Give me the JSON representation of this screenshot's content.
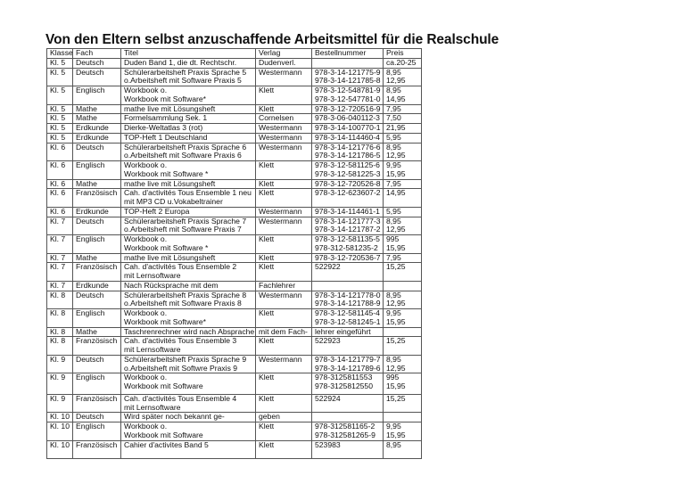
{
  "title": "Von den Eltern selbst anzuschaffende Arbeitsmittel für die Realschule",
  "headers": [
    "Klasse",
    "Fach",
    "Titel",
    "Verlag",
    "Bestellnummer",
    "Preis"
  ],
  "rows": [
    [
      [
        "Kl. 5"
      ],
      [
        "Deutsch"
      ],
      [
        "Duden Band 1, die dt. Rechtschr."
      ],
      [
        "Dudenverl."
      ],
      [
        ""
      ],
      [
        "ca.20-25"
      ]
    ],
    [
      [
        "Kl. 5"
      ],
      [
        "Deutsch"
      ],
      [
        "Schülerarbeitsheft Praxis Sprache 5",
        "o.Arbeitsheft mit Software Praxis 5"
      ],
      [
        "Westermann"
      ],
      [
        "978-3-14-121775-9",
        "978-3-14-121785-8"
      ],
      [
        "8,95",
        "12,95"
      ]
    ],
    [
      [
        "Kl. 5"
      ],
      [
        "Englisch"
      ],
      [
        "Workbook o.",
        "Workbook mit Software*"
      ],
      [
        "Klett"
      ],
      [
        "978-3-12-548781-9",
        "978-3-12-547781-0"
      ],
      [
        "8,95",
        "14,95"
      ]
    ],
    [
      [
        "Kl. 5"
      ],
      [
        "Mathe"
      ],
      [
        "mathe  live mit Lösungsheft"
      ],
      [
        "Klett"
      ],
      [
        "978-3-12-720516-9"
      ],
      [
        "7,95"
      ]
    ],
    [
      [
        "Kl. 5"
      ],
      [
        "Mathe"
      ],
      [
        "Formelsammlung Sek. 1"
      ],
      [
        "Cornelsen"
      ],
      [
        "978-3-06-040112-3"
      ],
      [
        "7,50"
      ]
    ],
    [
      [
        "Kl. 5"
      ],
      [
        "Erdkunde"
      ],
      [
        "Dierke-Weltatlas 3 (rot)"
      ],
      [
        "Westermann"
      ],
      [
        "978-3-14-100770-1"
      ],
      [
        "21,95"
      ]
    ],
    [
      [
        "Kl. 5"
      ],
      [
        "Erdkunde"
      ],
      [
        "TOP-Heft 1 Deutschland"
      ],
      [
        "Westermann"
      ],
      [
        "978-3-14-114460-4"
      ],
      [
        "5,95"
      ]
    ],
    [
      [
        "Kl. 6"
      ],
      [
        "Deutsch"
      ],
      [
        "Schülerarbeitsheft Praxis Sprache 6",
        "o.Arbeitsheft mit Software Praxis 6"
      ],
      [
        "Westermann"
      ],
      [
        "978-3-14-121776-6",
        "978-3-14-121786-5"
      ],
      [
        "8,95",
        "12,95"
      ]
    ],
    [
      [
        "Kl. 6"
      ],
      [
        "Englisch"
      ],
      [
        "Workbook o.",
        "Workbook mit Software *"
      ],
      [
        "Klett"
      ],
      [
        "978-3-12-581125-6",
        "978-3-12-581225-3"
      ],
      [
        "9,95",
        "15,95"
      ]
    ],
    [
      [
        "Kl. 6"
      ],
      [
        "Mathe"
      ],
      [
        "mathe live mit Lösungsheft"
      ],
      [
        "Klett"
      ],
      [
        "978-3-12-720526-8"
      ],
      [
        "7,95"
      ]
    ],
    [
      [
        "Kl. 6"
      ],
      [
        "Französisch"
      ],
      [
        "Cah. d'activités Tous Ensemble 1 neu",
        "mit MP3 CD u.Vokabeltrainer"
      ],
      [
        "Klett"
      ],
      [
        "978-3-12-623607-2"
      ],
      [
        "14,95"
      ]
    ],
    [
      [
        "Kl. 6"
      ],
      [
        "Erdkunde"
      ],
      [
        "TOP-Heft 2 Europa"
      ],
      [
        "Westermann"
      ],
      [
        "978-3-14-114461-1"
      ],
      [
        "5,95"
      ]
    ],
    [
      [
        "Kl. 7"
      ],
      [
        "Deutsch"
      ],
      [
        "Schülerarbeitsheft Praxis Sprache 7",
        "o.Arbeitsheft mit Software Praxis 7"
      ],
      [
        "Westermann"
      ],
      [
        "978-3-14-121777-3",
        "978-3-14-121787-2"
      ],
      [
        "8,95",
        "12,95"
      ]
    ],
    [
      [
        "Kl. 7"
      ],
      [
        "Englisch"
      ],
      [
        "Workbook o.",
        "Workbook mit Software *"
      ],
      [
        "Klett"
      ],
      [
        "978-3-12-581135-5",
        "978-312-581235-2"
      ],
      [
        "995",
        "15,95"
      ]
    ],
    [
      [
        "Kl. 7"
      ],
      [
        "Mathe"
      ],
      [
        "mathe live mit Lösungsheft"
      ],
      [
        "Klett"
      ],
      [
        "978-3-12-720536-7"
      ],
      [
        "7,95"
      ]
    ],
    [
      [
        "Kl. 7"
      ],
      [
        "Französisch"
      ],
      [
        "Cah. d'activités Tous Ensemble 2",
        "mit Lernsoftware"
      ],
      [
        "Klett"
      ],
      [
        "522922"
      ],
      [
        "15,25"
      ]
    ],
    [
      [
        "Kl. 7"
      ],
      [
        "Erdkunde"
      ],
      [
        "Nach Rücksprache mit dem"
      ],
      [
        "Fachlehrer"
      ],
      [
        ""
      ],
      [
        ""
      ]
    ],
    [
      [
        "Kl. 8"
      ],
      [
        "Deutsch"
      ],
      [
        "Schülerarbeitsheft Praxis Sprache 8",
        "o.Arbeitsheft mit Software Praxis 8"
      ],
      [
        "Westermann"
      ],
      [
        "978-3-14-121778-0",
        "978-3-14-121788-9"
      ],
      [
        "8,95",
        "12,95"
      ]
    ],
    [
      [
        "Kl. 8"
      ],
      [
        "Englisch"
      ],
      [
        "Workbook o.",
        "Workbook mit Software*"
      ],
      [
        "Klett"
      ],
      [
        "978-3-12-581145-4",
        "978-3-12-581245-1"
      ],
      [
        "9,95",
        "15,95"
      ]
    ],
    [
      [
        "Kl. 8"
      ],
      [
        "Mathe"
      ],
      [
        "Taschrenrechner wird nach Absprache"
      ],
      [
        "mit dem Fach-"
      ],
      [
        "lehrer eingeführt"
      ],
      [
        ""
      ]
    ],
    [
      [
        "Kl. 8"
      ],
      [
        "Französisch"
      ],
      [
        "Cah. d'activités Tous Ensemble 3",
        "mit Lernsoftware"
      ],
      [
        "Klett"
      ],
      [
        "522923"
      ],
      [
        "15,25"
      ]
    ],
    [
      [
        "Kl. 9"
      ],
      [
        "Deutsch"
      ],
      [
        "Schülerarbeitsheft Praxis Sprache 9",
        "o.Arbeitsheft mit Softwre Praxis 9"
      ],
      [
        "Westermann"
      ],
      [
        "978-3-14-121779-7",
        "978-3-14-121789-6"
      ],
      [
        "8,95",
        "12,95"
      ]
    ],
    [
      [
        "Kl. 9"
      ],
      [
        "Englisch"
      ],
      [
        "Workbook o.",
        "Workbook mit Software"
      ],
      [
        "Klett"
      ],
      [
        "978-3125811553",
        "978-3125812550"
      ],
      [
        "995",
        "15,95"
      ]
    ],
    [
      [
        "Kl. 9"
      ],
      [
        "Französisch"
      ],
      [
        "Cah. d'activités Tous  Ensemble 4",
        "mit Lernsoftware"
      ],
      [
        "Klett"
      ],
      [
        "522924"
      ],
      [
        "15,25"
      ]
    ],
    [
      [
        "Kl. 10"
      ],
      [
        "Deutsch"
      ],
      [
        "Wird später noch bekannt ge-"
      ],
      [
        "geben"
      ],
      [
        ""
      ],
      [
        ""
      ]
    ],
    [
      [
        "Kl. 10"
      ],
      [
        "Englisch"
      ],
      [
        "Workbook o.",
        "Workbook mit Software"
      ],
      [
        "Klett"
      ],
      [
        "978-312581165-2",
        "978-312581265-9"
      ],
      [
        "9,95",
        "15,95"
      ]
    ],
    [
      [
        "Kl. 10"
      ],
      [
        "Französisch"
      ],
      [
        "Cahier d'activites Band 5",
        ""
      ],
      [
        "Klett"
      ],
      [
        "523983"
      ],
      [
        "8,95"
      ]
    ]
  ]
}
